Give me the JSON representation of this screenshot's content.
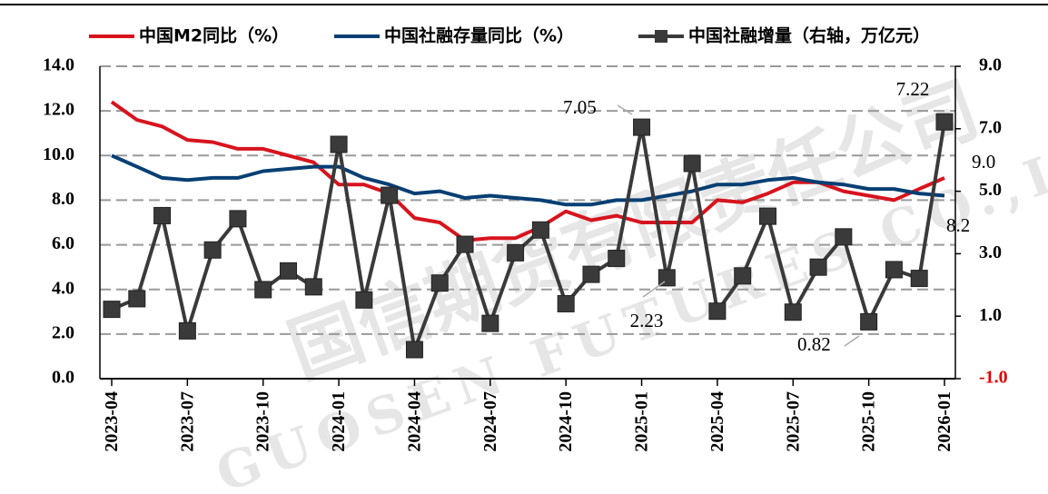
{
  "chart_data": {
    "type": "line",
    "categories": [
      "2023-04",
      null,
      null,
      "2023-07",
      null,
      null,
      "2023-10",
      null,
      null,
      "2024-01",
      null,
      null,
      "2024-04",
      null,
      null,
      "2024-07",
      null,
      null,
      "2024-10",
      null,
      null,
      "2025-01",
      null,
      null,
      "2025-04",
      null,
      null,
      "2025-07",
      null,
      null,
      "2025-10",
      null,
      null,
      "2026-01"
    ],
    "series": [
      {
        "name": "中国M2同比（%）",
        "color": "#d7141e",
        "values": [
          12.4,
          11.6,
          11.3,
          10.7,
          10.6,
          10.3,
          10.3,
          10.0,
          9.7,
          8.7,
          8.7,
          8.3,
          7.2,
          7.0,
          6.2,
          6.3,
          6.3,
          6.8,
          7.5,
          7.1,
          7.3,
          7.0,
          7.0,
          7.0,
          8.0,
          7.9,
          8.3,
          8.8,
          8.8,
          8.4,
          8.2,
          8.0,
          8.5,
          9.0
        ],
        "value_labels": [
          null,
          null,
          null,
          null,
          null,
          null,
          null,
          null,
          null,
          null,
          null,
          null,
          null,
          null,
          null,
          null,
          null,
          null,
          null,
          null,
          null,
          null,
          null,
          null,
          null,
          null,
          null,
          null,
          null,
          null,
          null,
          null,
          null,
          "9.0"
        ]
      },
      {
        "name": "中国社融存量同比（%）",
        "color": "#063f73",
        "values": [
          10.0,
          9.5,
          9.0,
          8.9,
          9.0,
          9.0,
          9.3,
          9.4,
          9.5,
          9.5,
          9.0,
          8.7,
          8.3,
          8.4,
          8.1,
          8.2,
          8.1,
          8.0,
          7.8,
          7.8,
          8.0,
          8.0,
          8.2,
          8.4,
          8.7,
          8.7,
          8.9,
          9.0,
          8.8,
          8.7,
          8.5,
          8.5,
          8.3,
          8.2
        ],
        "value_labels": [
          null,
          null,
          null,
          null,
          null,
          null,
          null,
          null,
          null,
          null,
          null,
          null,
          null,
          null,
          null,
          null,
          null,
          null,
          null,
          null,
          null,
          null,
          null,
          null,
          null,
          null,
          null,
          null,
          null,
          null,
          null,
          null,
          null,
          "8.2"
        ]
      },
      {
        "name": "中国社融增量（右轴，万亿元）",
        "color": "#3a3a3a",
        "axis": "y2",
        "marker": "square",
        "values": [
          1.22,
          1.56,
          4.22,
          0.53,
          3.12,
          4.12,
          1.85,
          2.45,
          1.94,
          6.5,
          1.52,
          4.87,
          -0.07,
          2.06,
          3.3,
          0.77,
          3.03,
          3.76,
          1.4,
          2.34,
          2.85,
          7.05,
          2.23,
          5.89,
          1.16,
          2.29,
          4.2,
          1.13,
          2.57,
          3.54,
          0.82,
          2.49,
          2.21,
          7.22
        ],
        "value_labels": [
          null,
          null,
          null,
          null,
          null,
          null,
          null,
          null,
          null,
          null,
          null,
          null,
          null,
          null,
          null,
          null,
          null,
          null,
          null,
          null,
          null,
          "7.05",
          "2.23",
          null,
          null,
          null,
          null,
          null,
          null,
          null,
          "0.82",
          null,
          null,
          "7.22"
        ]
      }
    ],
    "ylim": [
      0,
      14
    ],
    "yticks": [
      {
        "value": 0,
        "label": "0.0"
      },
      {
        "value": 2,
        "label": "2.0"
      },
      {
        "value": 4,
        "label": "4.0"
      },
      {
        "value": 6,
        "label": "6.0"
      },
      {
        "value": 8,
        "label": "8.0"
      },
      {
        "value": 10,
        "label": "10.0"
      },
      {
        "value": 12,
        "label": "12.0"
      },
      {
        "value": 14,
        "label": "14.0"
      }
    ],
    "y2lim": [
      -1,
      9
    ],
    "y2ticks": [
      {
        "value": -1,
        "label": "-1.0"
      },
      {
        "value": 1,
        "label": "1.0"
      },
      {
        "value": 3,
        "label": "3.0"
      },
      {
        "value": 5,
        "label": "5.0"
      },
      {
        "value": 7,
        "label": "7.0"
      },
      {
        "value": 9,
        "label": "9.0"
      }
    ],
    "y2tick_label_colors": [
      "#e00000",
      "#000",
      "#000",
      "#000",
      "#000",
      "#000"
    ],
    "grid": true,
    "grid_color": "#999",
    "legend": "top",
    "watermark": [
      "国信期货有限责任公司",
      "GUOSEN FUTURES CO.,LTD"
    ]
  }
}
